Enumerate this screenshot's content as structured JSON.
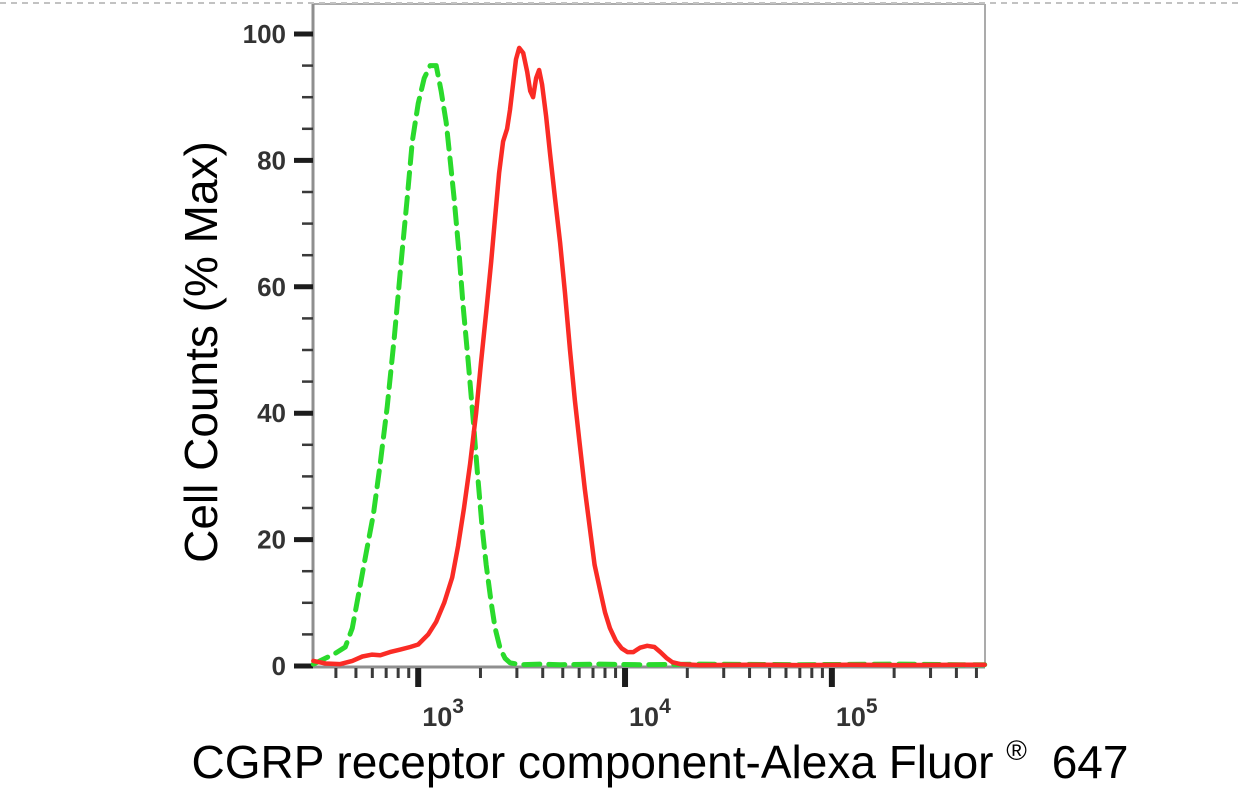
{
  "page": {
    "background": "#ffffff",
    "selection_border_color": "#c2c2c2"
  },
  "chart_data": {
    "type": "line",
    "subtype": "flow-cytometry-histogram",
    "title": "",
    "xlabel": "CGRP receptor component-Alexa Fluor® 647",
    "xlabel_parts": {
      "main": "CGRP receptor component-Alexa Fluor",
      "registered_mark": "®",
      "suffix": "647"
    },
    "ylabel": "Cell Counts (% Max)",
    "x_scale": "log",
    "xlim": [
      310,
      550000
    ],
    "ylim": [
      0,
      100
    ],
    "grid": false,
    "legend_position": "none",
    "axis_color": "#8f8f8f",
    "frame_color": "#ababab",
    "tick_color": "#1c1c1c",
    "minor_tick_color": "#3a3a3a",
    "tick_label_color": "#333333",
    "x_ticks_major": [
      {
        "value": 1000,
        "base": "10",
        "exp": "3"
      },
      {
        "value": 10000,
        "base": "10",
        "exp": "4"
      },
      {
        "value": 100000,
        "base": "10",
        "exp": "5"
      }
    ],
    "x_ticks_minor": [
      400,
      500,
      600,
      700,
      800,
      900,
      2000,
      3000,
      4000,
      5000,
      6000,
      7000,
      8000,
      9000,
      20000,
      30000,
      40000,
      50000,
      60000,
      70000,
      80000,
      90000,
      200000,
      300000,
      400000,
      500000
    ],
    "y_ticks_major": [
      0,
      20,
      40,
      60,
      80,
      100
    ],
    "y_ticks_minor": [
      5,
      10,
      15,
      25,
      30,
      35,
      45,
      50,
      55,
      65,
      70,
      75,
      85,
      90,
      95
    ],
    "series": [
      {
        "name": "green-dashed-curve",
        "color": "#2ada2c",
        "line_style": "dashed",
        "line_width": 5,
        "peak": {
          "x": 1200,
          "y": 95
        },
        "points": [
          [
            311,
            0.3
          ],
          [
            344,
            1
          ],
          [
            397,
            2
          ],
          [
            444,
            3
          ],
          [
            480,
            6
          ],
          [
            519,
            12
          ],
          [
            561,
            18
          ],
          [
            607,
            24
          ],
          [
            655,
            32
          ],
          [
            708,
            41
          ],
          [
            766,
            52
          ],
          [
            828,
            64
          ],
          [
            885,
            74
          ],
          [
            936,
            83
          ],
          [
            1000,
            89
          ],
          [
            1069,
            93
          ],
          [
            1143,
            95
          ],
          [
            1222,
            95
          ],
          [
            1291,
            91
          ],
          [
            1365,
            86
          ],
          [
            1428,
            80
          ],
          [
            1492,
            74
          ],
          [
            1578,
            65
          ],
          [
            1649,
            57
          ],
          [
            1746,
            48
          ],
          [
            1845,
            39
          ],
          [
            1928,
            31
          ],
          [
            2037,
            22
          ],
          [
            2133,
            16
          ],
          [
            2254,
            10
          ],
          [
            2355,
            6
          ],
          [
            2489,
            2.8
          ],
          [
            2630,
            1.2
          ],
          [
            2780,
            0.5
          ],
          [
            3113,
            0.2
          ],
          [
            3884,
            0.3
          ],
          [
            4853,
            0.2
          ],
          [
            7572,
            0.3
          ],
          [
            11815,
            0.2
          ],
          [
            23014,
            0.3
          ],
          [
            69984,
            0.2
          ],
          [
            212862,
            0.3
          ],
          [
            420000,
            0.2
          ],
          [
            548000,
            0.2
          ]
        ]
      },
      {
        "name": "red-solid-curve",
        "color": "#fa2b25",
        "line_style": "solid",
        "line_width": 4.5,
        "peak": {
          "x": 3080,
          "y": 97.8
        },
        "points": [
          [
            311,
            0.8
          ],
          [
            357,
            0.4
          ],
          [
            420,
            0.3
          ],
          [
            480,
            0.8
          ],
          [
            537,
            1.5
          ],
          [
            599,
            1.8
          ],
          [
            655,
            1.7
          ],
          [
            730,
            2.2
          ],
          [
            819,
            2.6
          ],
          [
            915,
            3.0
          ],
          [
            1000,
            3.4
          ],
          [
            1118,
            5
          ],
          [
            1222,
            7
          ],
          [
            1336,
            10
          ],
          [
            1460,
            14
          ],
          [
            1559,
            19
          ],
          [
            1665,
            25
          ],
          [
            1782,
            32
          ],
          [
            1905,
            40
          ],
          [
            2011,
            48
          ],
          [
            2133,
            56
          ],
          [
            2254,
            64
          ],
          [
            2355,
            71
          ],
          [
            2461,
            78
          ],
          [
            2573,
            83
          ],
          [
            2690,
            85
          ],
          [
            2780,
            88
          ],
          [
            2873,
            92
          ],
          [
            2969,
            96
          ],
          [
            3078,
            97.8
          ],
          [
            3218,
            97
          ],
          [
            3364,
            94
          ],
          [
            3478,
            91
          ],
          [
            3595,
            90
          ],
          [
            3716,
            93
          ],
          [
            3841,
            94.3
          ],
          [
            3971,
            92
          ],
          [
            4152,
            87
          ],
          [
            4340,
            81
          ],
          [
            4585,
            74
          ],
          [
            4853,
            67
          ],
          [
            5127,
            59
          ],
          [
            5416,
            50
          ],
          [
            5722,
            42
          ],
          [
            6045,
            35
          ],
          [
            6387,
            28
          ],
          [
            6748,
            22
          ],
          [
            7129,
            16
          ],
          [
            7572,
            12
          ],
          [
            7999,
            8.5
          ],
          [
            8451,
            6
          ],
          [
            9020,
            4
          ],
          [
            9627,
            2.8
          ],
          [
            10275,
            2.2
          ],
          [
            10967,
            2.2
          ],
          [
            11815,
            2.9
          ],
          [
            12804,
            3.2
          ],
          [
            13870,
            3.0
          ],
          [
            14820,
            2.2
          ],
          [
            15830,
            1.3
          ],
          [
            16920,
            0.6
          ],
          [
            18450,
            0.3
          ],
          [
            23014,
            0.15
          ],
          [
            40080,
            0.2
          ],
          [
            69984,
            0.15
          ],
          [
            121780,
            0.2
          ],
          [
            212862,
            0.15
          ],
          [
            420000,
            0.2
          ],
          [
            548000,
            0.2
          ]
        ]
      }
    ]
  }
}
